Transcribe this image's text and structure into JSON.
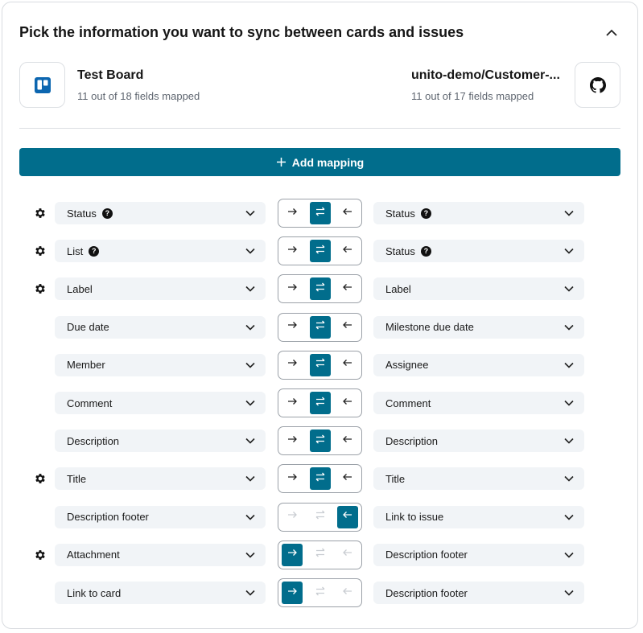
{
  "header": {
    "title": "Pick the information you want to sync between cards and issues",
    "collapse_icon": "chevron-up-icon"
  },
  "left_tool": {
    "name": "Test Board",
    "subtitle": "11 out of 18 fields mapped",
    "icon": "trello-icon",
    "color": "#0c66b0"
  },
  "right_tool": {
    "name": "unito-demo/Customer-...",
    "subtitle": "11 out of 17 fields mapped",
    "icon": "github-icon"
  },
  "add_mapping": {
    "label": "Add mapping"
  },
  "colors": {
    "accent": "#016d8c",
    "dropdown_bg": "#f1f4f7"
  },
  "mappings": [
    {
      "left": "Status",
      "left_help": true,
      "right": "Status",
      "right_help": true,
      "direction": "both",
      "gear": true
    },
    {
      "left": "List",
      "left_help": true,
      "right": "Status",
      "right_help": true,
      "direction": "both",
      "gear": true
    },
    {
      "left": "Label",
      "right": "Label",
      "direction": "both",
      "gear": true
    },
    {
      "left": "Due date",
      "right": "Milestone due date",
      "direction": "both",
      "gear": false
    },
    {
      "left": "Member",
      "right": "Assignee",
      "direction": "both",
      "gear": false
    },
    {
      "left": "Comment",
      "right": "Comment",
      "direction": "both",
      "gear": false
    },
    {
      "left": "Description",
      "right": "Description",
      "direction": "both",
      "gear": false
    },
    {
      "left": "Title",
      "right": "Title",
      "direction": "both",
      "gear": true
    },
    {
      "left": "Description footer",
      "right": "Link to issue",
      "direction": "right-to-left",
      "gear": false
    },
    {
      "left": "Attachment",
      "right": "Description footer",
      "direction": "left-to-right",
      "gear": true
    },
    {
      "left": "Link to card",
      "right": "Description footer",
      "direction": "left-to-right",
      "gear": false
    }
  ]
}
